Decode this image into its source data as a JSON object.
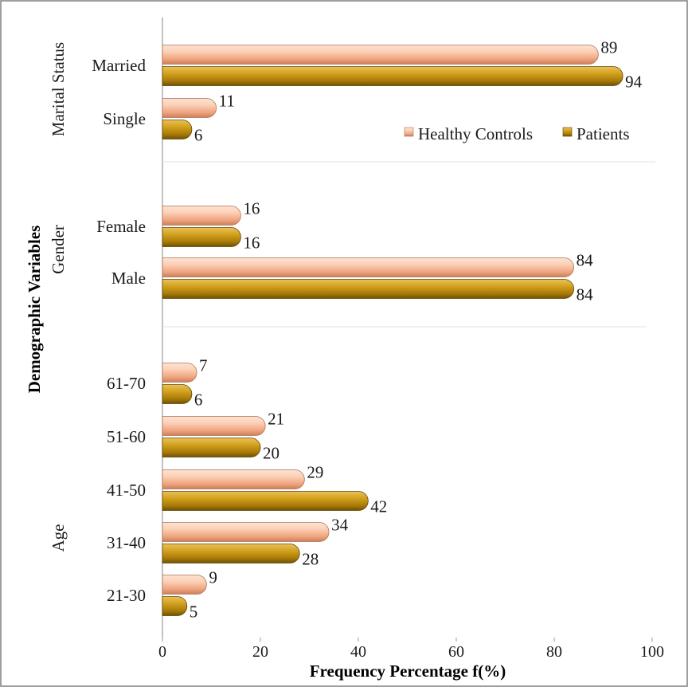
{
  "chart_data": {
    "type": "bar",
    "orientation": "horizontal",
    "xlabel": "Frequency Percentage f(%)",
    "ylabel": "Demographic Variables",
    "xlim": [
      0,
      100
    ],
    "xticks": [
      "0",
      "20",
      "40",
      "60",
      "80",
      "100"
    ],
    "legend": {
      "placement": "upper-right inside plot",
      "entries": [
        "Healthy Controls",
        "Patients"
      ]
    },
    "series": [
      {
        "name": "Healthy Controls",
        "color": "#F5B08C"
      },
      {
        "name": "Patients",
        "color": "#B8860B"
      }
    ],
    "groups": [
      {
        "label": "Marital Status",
        "categories": [
          {
            "label": "Married",
            "healthy": 89,
            "patients": 94
          },
          {
            "label": "Single",
            "healthy": 11,
            "patients": 6
          }
        ]
      },
      {
        "label": "Gender",
        "categories": [
          {
            "label": "Female",
            "healthy": 16,
            "patients": 16
          },
          {
            "label": "Male",
            "healthy": 84,
            "patients": 84
          }
        ]
      },
      {
        "label": "Age",
        "categories": [
          {
            "label": "61-70",
            "healthy": 7,
            "patients": 6
          },
          {
            "label": "51-60",
            "healthy": 21,
            "patients": 20
          },
          {
            "label": "41-50",
            "healthy": 29,
            "patients": 42
          },
          {
            "label": "31-40",
            "healthy": 34,
            "patients": 28
          },
          {
            "label": "21-30",
            "healthy": 9,
            "patients": 5
          }
        ]
      }
    ]
  }
}
